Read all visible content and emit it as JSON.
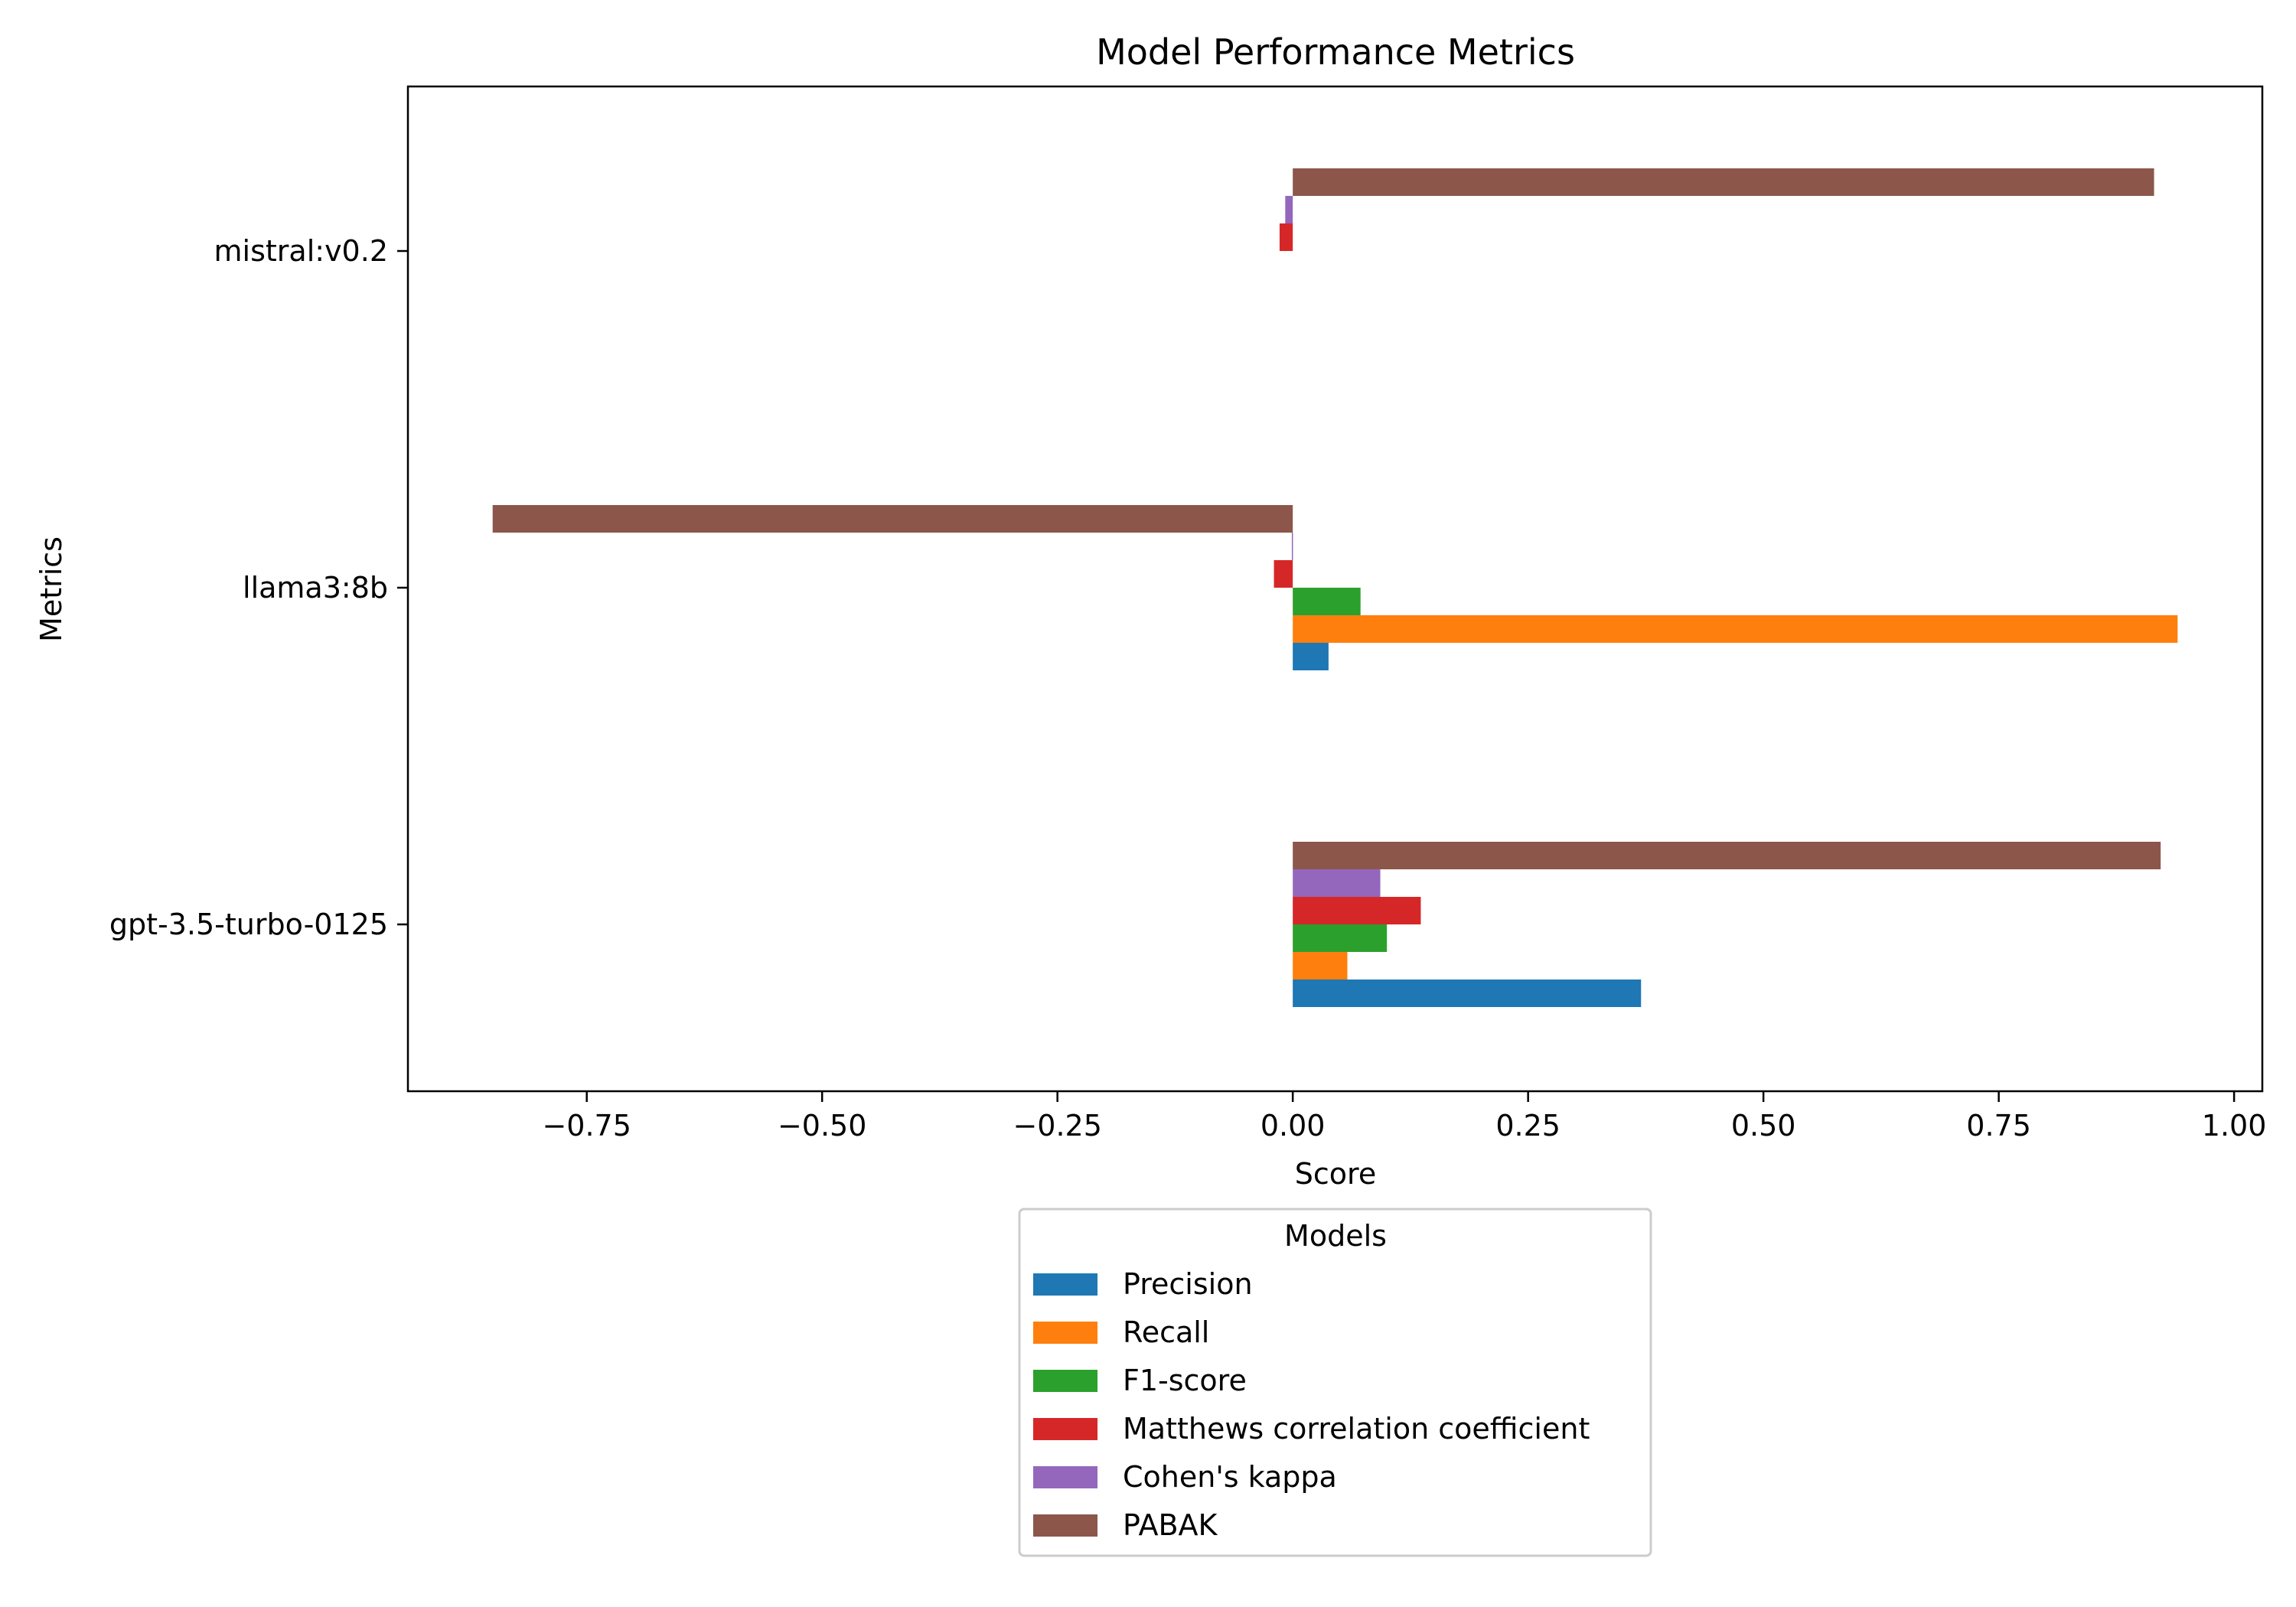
{
  "chart_data": {
    "type": "bar",
    "orientation": "horizontal",
    "title": "Model Performance Metrics",
    "xlabel": "Score",
    "ylabel": "Metrics",
    "xlim": [
      -0.94,
      1.03
    ],
    "x_ticks": [
      -0.75,
      -0.5,
      -0.25,
      0.0,
      0.25,
      0.5,
      0.75,
      1.0
    ],
    "x_tick_labels": [
      "−0.75",
      "−0.50",
      "−0.25",
      "0.00",
      "0.25",
      "0.50",
      "0.75",
      "1.00"
    ],
    "categories": [
      "gpt-3.5-turbo-0125",
      "llama3:8b",
      "mistral:v0.2"
    ],
    "series": [
      {
        "name": "Precision",
        "color": "#1f77b4",
        "values": [
          0.37,
          0.038,
          0.0
        ]
      },
      {
        "name": "Recall",
        "color": "#ff7f0e",
        "values": [
          0.058,
          0.94,
          0.0
        ]
      },
      {
        "name": "F1-score",
        "color": "#2ca02c",
        "values": [
          0.1,
          0.072,
          0.0
        ]
      },
      {
        "name": "Matthews correlation coefficient",
        "color": "#d62728",
        "values": [
          0.136,
          -0.02,
          -0.014
        ]
      },
      {
        "name": "Cohen's kappa",
        "color": "#9467bd",
        "values": [
          0.093,
          -0.001,
          -0.008
        ]
      },
      {
        "name": "PABAK",
        "color": "#8c564b",
        "values": [
          0.922,
          -0.85,
          0.915
        ]
      }
    ],
    "legend": {
      "title": "Models",
      "placement": "below"
    },
    "grid": false
  }
}
